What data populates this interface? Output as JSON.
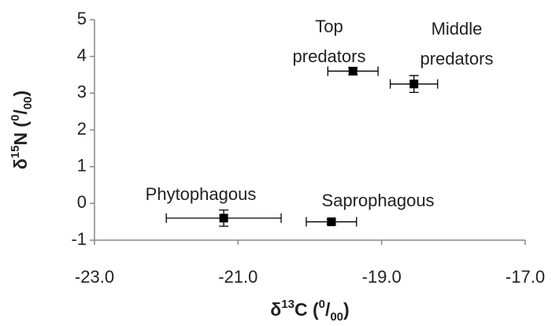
{
  "chart_data": {
    "type": "scatter",
    "x_label": [
      "δ",
      "13",
      "C (",
      "0",
      "/",
      "00",
      ")"
    ],
    "y_label": [
      "δ",
      "15",
      "N (",
      "0",
      "/",
      "00",
      ")"
    ],
    "labels": [
      [
        "Phytophagous"
      ],
      [
        "Saprophagous"
      ],
      [
        "Top",
        "predators"
      ],
      [
        "Middle",
        "predators"
      ]
    ],
    "x": [
      -21.2,
      -19.7,
      -19.4,
      -18.55
    ],
    "values": [
      -0.4,
      -0.5,
      3.6,
      3.25
    ],
    "xerr": [
      0.8,
      0.35,
      0.35,
      0.33
    ],
    "yerr": [
      0.22,
      0.06,
      0.1,
      0.23
    ],
    "color": "#000000",
    "xlim": [
      -23,
      -17
    ],
    "xticks": [
      {
        "value": -23,
        "label": "-23.0"
      },
      {
        "value": -21,
        "label": "-21.0"
      },
      {
        "value": -19,
        "label": "-19.0"
      },
      {
        "value": -17,
        "label": "-17.0"
      }
    ],
    "ylim": [
      -1,
      5
    ],
    "yticks": [
      -1,
      0,
      1,
      2,
      3,
      4,
      5
    ],
    "grid": false
  }
}
